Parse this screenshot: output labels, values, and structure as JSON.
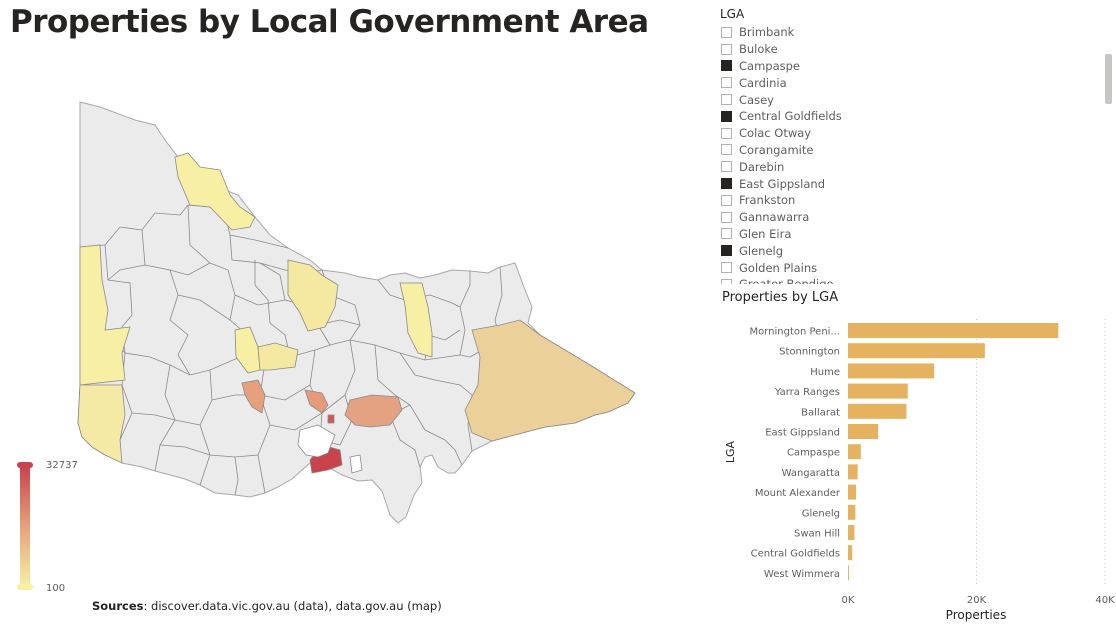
{
  "page": {
    "title": "Properties by Local Government Area",
    "sources_label": "Sources",
    "sources_text": ": discover.data.vic.gov.au (data), data.gov.au (map)"
  },
  "map": {
    "legend_max": "32737",
    "legend_min": "100",
    "colors": {
      "high": "#c8434b",
      "mid": "#e6a07c",
      "low": "#f7efa3",
      "none": "#ebebeb",
      "border": "#8a8a8a"
    }
  },
  "slicer": {
    "title": "LGA",
    "items": [
      {
        "label": "Brimbank",
        "checked": false
      },
      {
        "label": "Buloke",
        "checked": false
      },
      {
        "label": "Campaspe",
        "checked": true
      },
      {
        "label": "Cardinia",
        "checked": false
      },
      {
        "label": "Casey",
        "checked": false
      },
      {
        "label": "Central Goldfields",
        "checked": true
      },
      {
        "label": "Colac Otway",
        "checked": false
      },
      {
        "label": "Corangamite",
        "checked": false
      },
      {
        "label": "Darebin",
        "checked": false
      },
      {
        "label": "East Gippsland",
        "checked": true
      },
      {
        "label": "Frankston",
        "checked": false
      },
      {
        "label": "Gannawarra",
        "checked": false
      },
      {
        "label": "Glen Eira",
        "checked": false
      },
      {
        "label": "Glenelg",
        "checked": true
      },
      {
        "label": "Golden Plains",
        "checked": false
      },
      {
        "label": "Greater Bendigo",
        "checked": false
      }
    ]
  },
  "chart_data": {
    "type": "bar",
    "orientation": "horizontal",
    "title": "Properties by LGA",
    "xlabel": "Properties",
    "ylabel": "LGA",
    "categories": [
      "Mornington Peni...",
      "Stonnington",
      "Hume",
      "Yarra Ranges",
      "Ballarat",
      "East Gippsland",
      "Campaspe",
      "Wangaratta",
      "Mount Alexander",
      "Glenelg",
      "Swan Hill",
      "Central Goldfields",
      "West Wimmera"
    ],
    "values": [
      32737,
      21300,
      13400,
      9300,
      9100,
      4700,
      2000,
      1500,
      1250,
      1150,
      1000,
      650,
      100
    ],
    "xlim": [
      0,
      40000
    ],
    "xticks": [
      0,
      20000,
      40000
    ],
    "xtick_labels": [
      "0K",
      "20K",
      "40K"
    ],
    "bar_color": "#e5b35f",
    "grid": "vertical dotted"
  }
}
